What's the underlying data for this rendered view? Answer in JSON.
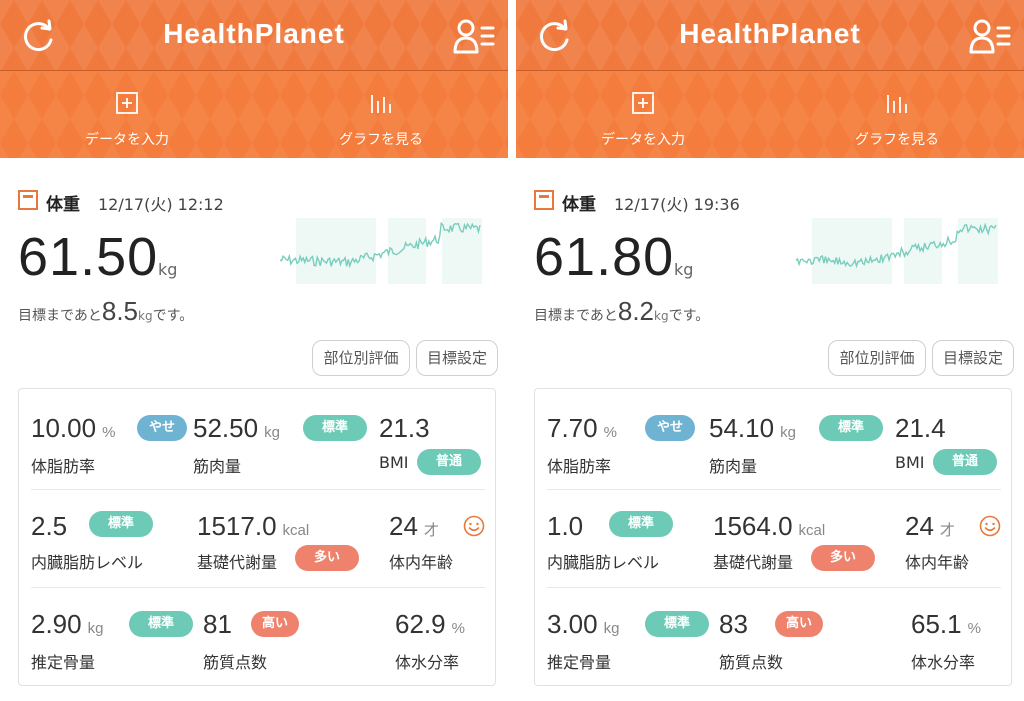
{
  "app": {
    "title": "HealthPlanet",
    "actions": {
      "enter_data": "データを入力",
      "view_graph": "グラフを見る"
    }
  },
  "colors": {
    "brand": "#f07a3e",
    "badge_thin": "#6fb3d2",
    "badge_standard": "#6ccab7",
    "badge_high": "#ee826c",
    "spark": "#79cdbd"
  },
  "icons": {
    "sync": "sync-icon",
    "profile": "profile-icon",
    "add": "plus-square-icon",
    "graph": "bar-graph-icon",
    "scale": "scale-icon",
    "smile": "smile-icon"
  },
  "panels": [
    {
      "weight": {
        "label": "体重",
        "datetime": "12/17(火) 12:12",
        "value": "61.50",
        "unit": "kg"
      },
      "goal": {
        "prefix": "目標まであと",
        "value": "8.5",
        "unit": "kg",
        "suffix": "です。"
      },
      "buttons": {
        "evaluation": "部位別評価",
        "goal_setting": "目標設定"
      },
      "metrics": {
        "body_fat": {
          "value": "10.00",
          "unit": "%",
          "label": "体脂肪率",
          "badge": "やせ"
        },
        "muscle": {
          "value": "52.50",
          "unit": "kg",
          "label": "筋肉量",
          "badge": "標準"
        },
        "bmi": {
          "value": "21.3",
          "label": "BMI",
          "badge": "普通"
        },
        "visceral": {
          "value": "2.5",
          "label": "内臓脂肪レベル",
          "badge": "標準"
        },
        "bmr": {
          "value": "1517.0",
          "unit": "kcal",
          "label": "基礎代謝量",
          "badge": "多い"
        },
        "age": {
          "value": "24",
          "unit": "才",
          "label": "体内年齢"
        },
        "bone": {
          "value": "2.90",
          "unit": "kg",
          "label": "推定骨量",
          "badge": "標準"
        },
        "muscle_quality": {
          "value": "81",
          "label": "筋質点数",
          "badge": "高い"
        },
        "water": {
          "value": "62.9",
          "unit": "%",
          "label": "体水分率"
        }
      }
    },
    {
      "weight": {
        "label": "体重",
        "datetime": "12/17(火) 19:36",
        "value": "61.80",
        "unit": "kg"
      },
      "goal": {
        "prefix": "目標まであと",
        "value": "8.2",
        "unit": "kg",
        "suffix": "です。"
      },
      "buttons": {
        "evaluation": "部位別評価",
        "goal_setting": "目標設定"
      },
      "metrics": {
        "body_fat": {
          "value": "7.70",
          "unit": "%",
          "label": "体脂肪率",
          "badge": "やせ"
        },
        "muscle": {
          "value": "54.10",
          "unit": "kg",
          "label": "筋肉量",
          "badge": "標準"
        },
        "bmi": {
          "value": "21.4",
          "label": "BMI",
          "badge": "普通"
        },
        "visceral": {
          "value": "1.0",
          "label": "内臓脂肪レベル",
          "badge": "標準"
        },
        "bmr": {
          "value": "1564.0",
          "unit": "kcal",
          "label": "基礎代謝量",
          "badge": "多い"
        },
        "age": {
          "value": "24",
          "unit": "才",
          "label": "体内年齢"
        },
        "bone": {
          "value": "3.00",
          "unit": "kg",
          "label": "推定骨量",
          "badge": "標準"
        },
        "muscle_quality": {
          "value": "83",
          "label": "筋質点数",
          "badge": "高い"
        },
        "water": {
          "value": "65.1",
          "unit": "%",
          "label": "体水分率"
        }
      }
    }
  ]
}
